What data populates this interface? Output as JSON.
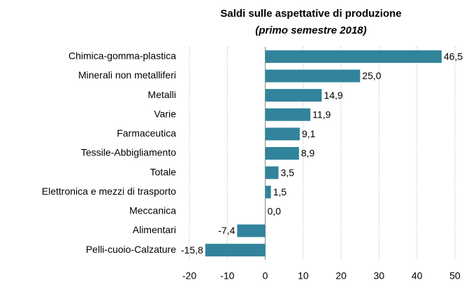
{
  "chart_data": {
    "type": "bar",
    "orientation": "horizontal",
    "title": "Saldi sulle aspettative di produzione",
    "subtitle": "(primo semestre 2018)",
    "categories": [
      "Chimica-gomma-plastica",
      "Minerali non metalliferi",
      "Metalli",
      "Varie",
      "Farmaceutica",
      "Tessile-Abbigliamento",
      "Totale",
      "Elettronica e mezzi di trasporto",
      "Meccanica",
      "Alimentari",
      "Pelli-cuoio-Calzature"
    ],
    "values": [
      46.5,
      25.0,
      14.9,
      11.9,
      9.1,
      8.9,
      3.5,
      1.5,
      0.0,
      -7.4,
      -15.8
    ],
    "value_labels": [
      "46,5",
      "25,0",
      "14,9",
      "11,9",
      "9,1",
      "8,9",
      "3,5",
      "1,5",
      "0,0",
      "-7,4",
      "-15,8"
    ],
    "color": "#31849b",
    "xlim": [
      -20,
      50
    ],
    "xticks": [
      -20,
      -10,
      0,
      10,
      20,
      30,
      40,
      50
    ],
    "grid": true
  }
}
